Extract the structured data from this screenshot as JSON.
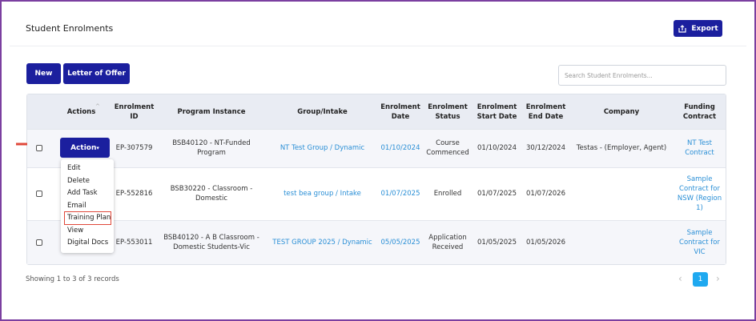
{
  "header": {
    "title": "Student Enrolments",
    "export": "Export"
  },
  "toolbar": {
    "new": "New",
    "letter": "Letter of Offer",
    "search_placeholder": "Search Student Enrolments..."
  },
  "table": {
    "columns": [
      "Actions",
      "Enrolment ID",
      "Program Instance",
      "Group/Intake",
      "Enrolment Date",
      "Enrolment Status",
      "Enrolment Start Date",
      "Enrolment End Date",
      "Company",
      "Funding Contract"
    ],
    "rows": [
      [
        "EP-307579",
        "BSB40120 - NT-Funded Program",
        "NT Test Group / Dynamic",
        "01/10/2024",
        "Course Commenced",
        "01/10/2024",
        "30/12/2024",
        "Testas - (Employer, Agent)",
        "NT Test Contract"
      ],
      [
        "EP-552816",
        "BSB30220 - Classroom - Domestic",
        "test bea group / Intake",
        "01/07/2025",
        "Enrolled",
        "01/07/2025",
        "01/07/2026",
        null,
        "Sample Contract for NSW (Region 1)"
      ],
      [
        "EP-553011",
        "BSB40120 - A B Classroom - Domestic Students-Vic",
        "TEST GROUP 2025 / Dynamic",
        "05/05/2025",
        "Application Received",
        "01/05/2025",
        "01/05/2026",
        null,
        "Sample Contract for VIC"
      ]
    ]
  },
  "action_menu": {
    "button": "Action",
    "items": [
      "Edit",
      "Delete",
      "Add Task",
      "Email",
      "Training Plan",
      "View",
      "Digital Docs"
    ],
    "highlighted": 4
  },
  "footer": {
    "summary": "Showing 1 to 3 of 3 records",
    "page": "1"
  }
}
